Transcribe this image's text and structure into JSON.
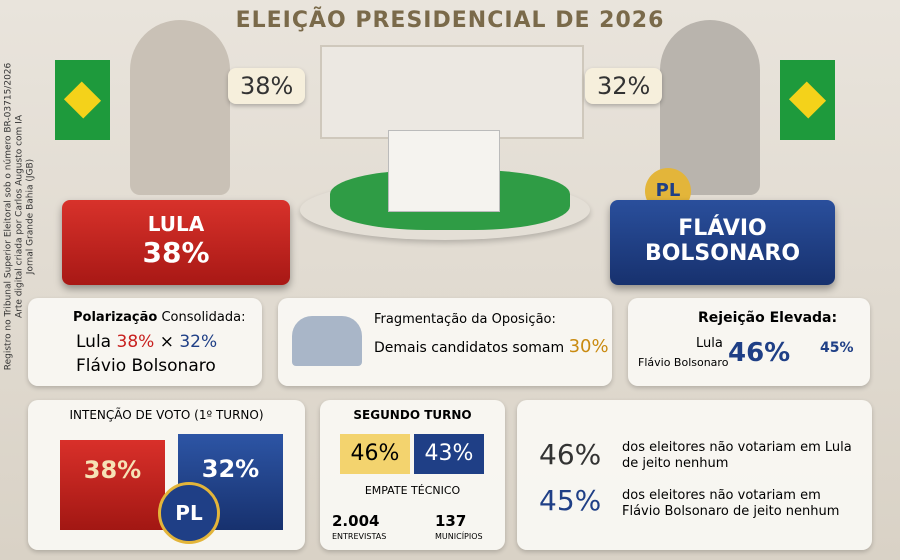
{
  "header": {
    "title": "ELEIÇÃO PRESIDENCIAL DE 2026"
  },
  "side_note": {
    "lines": [
      "Registro no Tribunal Superior Eleitoral sob o número BR-03715/2026",
      "Arte digital criada por Carlos Augusto com IA",
      "Jornal Grande Bahia (JGB)"
    ]
  },
  "candidates": [
    {
      "bubble": "38%",
      "podium_name": [
        "LULA"
      ],
      "podium_percent": "38%"
    },
    {
      "bubble": "32%",
      "badge": "PL",
      "podium_name": [
        "FLÁVIO",
        "BOLSONARO"
      ]
    }
  ],
  "panels": {
    "polarization": {
      "title_bold": "Polarização",
      "title_rest": "Consolidada:",
      "line1": [
        "Lula",
        "38%",
        "×",
        "32%"
      ],
      "line2": "Flávio Bolsonaro"
    },
    "fragmentation": {
      "title": "Fragmentação da Oposição:",
      "text": "Demais candidatos somam",
      "percent": "30%"
    },
    "rejection": {
      "title": "Rejeição Elevada:",
      "names": [
        "Lula",
        "Flávio Bolsonaro"
      ],
      "percents": [
        "46%",
        "45%"
      ]
    }
  },
  "first_round": {
    "title": "INTENÇÃO DE VOTO (1º TURNO)",
    "bars": [
      "38%",
      "32%"
    ],
    "badge": "PL"
  },
  "second_round": {
    "title": "SEGUNDO TURNO",
    "values": [
      "46%",
      "43%"
    ],
    "label": "EMPATE TÉCNICO",
    "stats": [
      {
        "value": "2.004",
        "label": "ENTREVISTAS"
      },
      {
        "value": "137",
        "label": "MUNICÍPIOS"
      }
    ]
  },
  "rejection_detail": [
    {
      "percent": "46%",
      "text": "dos eleitores não votariam em Lula de jeito nenhum"
    },
    {
      "percent": "45%",
      "text": "dos eleitores não votariam em Flávio Bolsonaro de jeito nenhum"
    }
  ]
}
